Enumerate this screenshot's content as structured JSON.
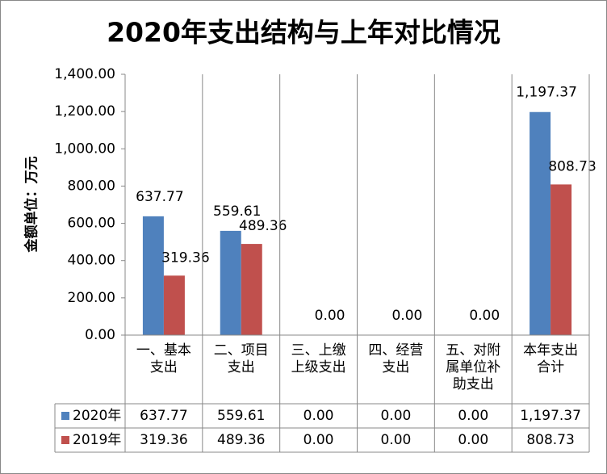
{
  "chart_data": {
    "type": "bar",
    "title": "2020年支出结构与上年对比情况",
    "y_label": "金额单位：万元",
    "categories": [
      "一、基本支出",
      "二、项目支出",
      "三、上缴上级支出",
      "四、经营支出",
      "五、对附属单位补助支出",
      "本年支出合计"
    ],
    "series": [
      {
        "name": "2020年",
        "color": "#4f81bd",
        "values": [
          637.77,
          559.61,
          0,
          0,
          0,
          1197.37
        ],
        "value_labels": [
          "637.77",
          "559.61",
          "0.00",
          "0.00",
          "0.00",
          "1,197.37"
        ]
      },
      {
        "name": "2019年",
        "color": "#c0504d",
        "values": [
          319.36,
          489.36,
          0,
          0,
          0,
          808.73
        ],
        "value_labels": [
          "319.36",
          "489.36",
          "0.00",
          "0.00",
          "0.00",
          "808.73"
        ]
      }
    ],
    "ylim": [
      0,
      1400
    ],
    "yticks": [
      {
        "value": 0,
        "label": "0.00"
      },
      {
        "value": 200,
        "label": "200.00"
      },
      {
        "value": 400,
        "label": "400.00"
      },
      {
        "value": 600,
        "label": "600.00"
      },
      {
        "value": 800,
        "label": "800.00"
      },
      {
        "value": 1000,
        "label": "1,000.00"
      },
      {
        "value": 1200,
        "label": "1,200.00"
      },
      {
        "value": 1400,
        "label": "1,400.00"
      }
    ]
  }
}
